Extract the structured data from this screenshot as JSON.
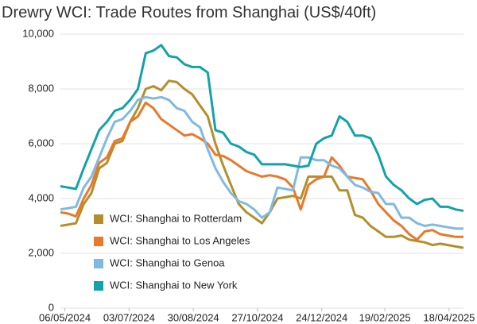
{
  "chart_data": {
    "type": "line",
    "title": "Drewry WCI: Trade Routes from Shanghai (US$/40ft)",
    "x": [
      "02/05/2024",
      "09/05/2024",
      "16/05/2024",
      "23/05/2024",
      "30/05/2024",
      "06/06/2024",
      "13/06/2024",
      "20/06/2024",
      "27/06/2024",
      "04/07/2024",
      "11/07/2024",
      "18/07/2024",
      "25/07/2024",
      "01/08/2024",
      "08/08/2024",
      "15/08/2024",
      "22/08/2024",
      "29/08/2024",
      "05/09/2024",
      "12/09/2024",
      "19/09/2024",
      "26/09/2024",
      "03/10/2024",
      "10/10/2024",
      "17/10/2024",
      "24/10/2024",
      "31/10/2024",
      "07/11/2024",
      "14/11/2024",
      "21/11/2024",
      "28/11/2024",
      "05/12/2024",
      "12/12/2024",
      "19/12/2024",
      "26/12/2024",
      "02/01/2025",
      "09/01/2025",
      "16/01/2025",
      "23/01/2025",
      "30/01/2025",
      "06/02/2025",
      "13/02/2025",
      "20/02/2025",
      "27/02/2025",
      "06/03/2025",
      "13/03/2025",
      "20/03/2025",
      "27/03/2025",
      "03/04/2025",
      "10/04/2025",
      "17/04/2025",
      "24/04/2025",
      "01/05/2025"
    ],
    "series": [
      {
        "name": "WCI: Shanghai to Rotterdam",
        "color": "#b38f2c",
        "values": [
          3000,
          3050,
          3100,
          3800,
          4200,
          5100,
          5300,
          6000,
          6100,
          6800,
          7300,
          8000,
          8100,
          7950,
          8300,
          8250,
          8000,
          7800,
          7400,
          7000,
          6000,
          5200,
          4500,
          3800,
          3500,
          3300,
          3100,
          3500,
          4000,
          4050,
          4100,
          4000,
          4800,
          4800,
          4800,
          4800,
          4300,
          4300,
          3400,
          3300,
          3000,
          2800,
          2600,
          2600,
          2650,
          2500,
          2450,
          2400,
          2300,
          2350,
          2300,
          2250,
          2200
        ]
      },
      {
        "name": "WCI: Shanghai to Los Angeles",
        "color": "#e8792a",
        "values": [
          3500,
          3450,
          3350,
          4000,
          4500,
          5300,
          5500,
          6100,
          6200,
          6800,
          7000,
          7500,
          7300,
          6900,
          6700,
          6500,
          6300,
          6350,
          6200,
          6000,
          5600,
          5550,
          5400,
          5200,
          5000,
          4900,
          4800,
          4850,
          4800,
          4700,
          4400,
          3600,
          4500,
          4700,
          4800,
          5500,
          5200,
          4800,
          4750,
          4700,
          4300,
          3800,
          3500,
          3200,
          3000,
          2700,
          2500,
          2800,
          2850,
          2700,
          2650,
          2600,
          2600
        ]
      },
      {
        "name": "WCI: Shanghai to Genoa",
        "color": "#80b9e2",
        "values": [
          3600,
          3650,
          3700,
          4400,
          4800,
          5500,
          6200,
          6800,
          6900,
          7200,
          7600,
          7700,
          7650,
          7700,
          7600,
          7300,
          7200,
          6800,
          6600,
          5800,
          5100,
          4600,
          4200,
          3900,
          3800,
          3600,
          3300,
          3500,
          4400,
          4350,
          4300,
          5500,
          5500,
          5400,
          5400,
          5200,
          5100,
          4800,
          4500,
          4400,
          4250,
          4200,
          3800,
          3800,
          3300,
          3300,
          3100,
          3000,
          3050,
          3000,
          2950,
          2900,
          2900
        ]
      },
      {
        "name": "WCI: Shanghai to New York",
        "color": "#14a2a8",
        "values": [
          4450,
          4400,
          4350,
          5100,
          5800,
          6500,
          6800,
          7200,
          7300,
          7600,
          8000,
          9300,
          9400,
          9600,
          9200,
          9150,
          8900,
          8800,
          8800,
          8600,
          6500,
          6400,
          6000,
          5900,
          5700,
          5600,
          5250,
          5250,
          5250,
          5250,
          5200,
          5150,
          5200,
          6000,
          6200,
          6300,
          7000,
          6800,
          6300,
          6300,
          6200,
          5600,
          4800,
          4500,
          4300,
          4000,
          3800,
          3950,
          4000,
          3700,
          3700,
          3600,
          3550
        ]
      }
    ],
    "xlim": [
      "02/05/2024",
      "01/05/2025"
    ],
    "xticks": [
      "06/05/2024",
      "03/07/2024",
      "30/08/2024",
      "27/10/2024",
      "24/12/2024",
      "19/02/2025",
      "18/04/2025"
    ],
    "ylim": [
      0,
      10000
    ],
    "yticks": [
      0,
      {
        "value": 2000,
        "label": "2,000"
      },
      {
        "value": 4000,
        "label": "4,000"
      },
      {
        "value": 6000,
        "label": "6,000"
      },
      {
        "value": 8000,
        "label": "8,000"
      },
      {
        "value": 10000,
        "label": "10,000"
      }
    ],
    "grid": true
  }
}
